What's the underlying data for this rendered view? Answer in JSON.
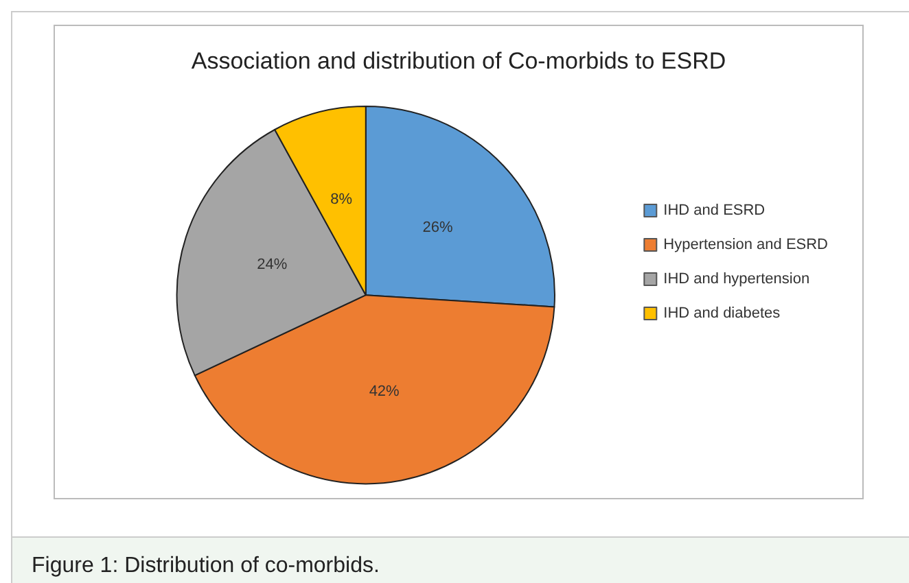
{
  "chart_data": {
    "type": "pie",
    "title": "Association and distribution of Co-morbids to ESRD",
    "categories": [
      "IHD and ESRD",
      "Hypertension and ESRD",
      "IHD and hypertension",
      "IHD and diabetes"
    ],
    "values": [
      26,
      42,
      24,
      8
    ],
    "colors": [
      "#5b9bd5",
      "#ed7d31",
      "#a5a5a5",
      "#ffc000"
    ],
    "value_labels": [
      "26%",
      "42%",
      "24%",
      "8%"
    ],
    "legend": "right",
    "annotations": [
      "Figure 1: Distribution of co-morbids."
    ]
  }
}
